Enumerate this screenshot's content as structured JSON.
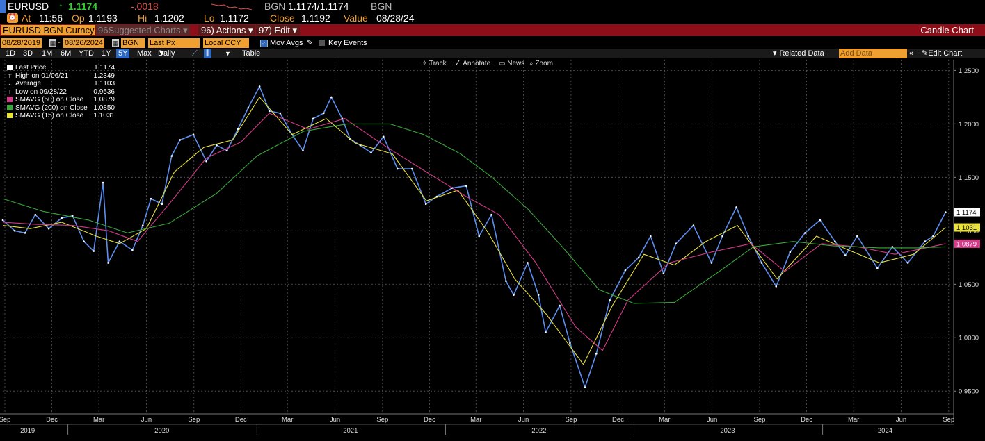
{
  "quote": {
    "symbol": "EURUSD",
    "arrow": "↑",
    "last": "1.1174",
    "change": "-.0018",
    "source_label": "BGN",
    "bid_ask": "1.1174/1.1174",
    "source_label2": "BGN",
    "at_label": "At",
    "time": "11:56",
    "op_label": "Op",
    "open": "1.1193",
    "hi_label": "Hi",
    "high": "1.1202",
    "lo_label": "Lo",
    "low": "1.1172",
    "close_label": "Close",
    "close": "1.1192",
    "value_label": "Value",
    "value_date": "08/28/24"
  },
  "titlebar": {
    "security": "EURUSD BGN Curncy",
    "suggested": "Suggested Charts",
    "suggested_num": "96",
    "actions_num": "96)",
    "actions": "Actions",
    "edit_num": "97)",
    "edit": "Edit",
    "chart_type": "Candle Chart"
  },
  "inputs": {
    "start_date": "08/28/2019",
    "end_date": "08/26/2024",
    "source": "BGN",
    "field": "Last Px",
    "currency": "Local CCY",
    "mov_avgs": "Mov Avgs",
    "key_events": "Key Events"
  },
  "rangebar": {
    "ranges": [
      "1D",
      "3D",
      "1M",
      "6M",
      "YTD",
      "1Y",
      "5Y",
      "Max"
    ],
    "selected": "5Y",
    "frequency": "Daily",
    "table": "Table",
    "related": "+ Related Data",
    "add_data_placeholder": "Add Data",
    "edit_chart": "Edit Chart"
  },
  "toolbar": {
    "track": "Track",
    "annotate": "Annotate",
    "news": "News",
    "zoom": "Zoom"
  },
  "legend": [
    {
      "label": "Last Price",
      "value": "1.1174",
      "color": "#ffffff"
    },
    {
      "label": "High on 01/06/21",
      "value": "1.2349",
      "color": ""
    },
    {
      "label": "Average",
      "value": "1.1103",
      "color": ""
    },
    {
      "label": "Low on 09/28/22",
      "value": "0.9536",
      "color": ""
    },
    {
      "label": "SMAVG (50)  on Close",
      "value": "1.0879",
      "color": "#d63a8a"
    },
    {
      "label": "SMAVG (200)  on Close",
      "value": "1.0850",
      "color": "#3aa83a"
    },
    {
      "label": "SMAVG (15)  on Close",
      "value": "1.1031",
      "color": "#e8e23a"
    }
  ],
  "chart_data": {
    "type": "line",
    "ylim": [
      0.93,
      1.26
    ],
    "yticks": [
      0.95,
      1.0,
      1.05,
      1.1,
      1.15,
      1.2,
      1.25
    ],
    "ytick_labels": [
      "0.9500",
      "1.0000",
      "1.0500",
      "1.1000",
      "1.1500",
      "1.2000",
      "1.2500"
    ],
    "xlim": [
      "2019-08-28",
      "2024-09-08"
    ],
    "month_ticks": [
      {
        "date": "2019-09-01",
        "label": "Sep"
      },
      {
        "date": "2019-12-01",
        "label": "Dec"
      },
      {
        "date": "2020-03-01",
        "label": "Mar"
      },
      {
        "date": "2020-06-01",
        "label": "Jun"
      },
      {
        "date": "2020-09-01",
        "label": "Sep"
      },
      {
        "date": "2020-12-01",
        "label": "Dec"
      },
      {
        "date": "2021-03-01",
        "label": "Mar"
      },
      {
        "date": "2021-06-01",
        "label": "Jun"
      },
      {
        "date": "2021-09-01",
        "label": "Sep"
      },
      {
        "date": "2021-12-01",
        "label": "Dec"
      },
      {
        "date": "2022-03-01",
        "label": "Mar"
      },
      {
        "date": "2022-06-01",
        "label": "Jun"
      },
      {
        "date": "2022-09-01",
        "label": "Sep"
      },
      {
        "date": "2022-12-01",
        "label": "Dec"
      },
      {
        "date": "2023-03-01",
        "label": "Mar"
      },
      {
        "date": "2023-06-01",
        "label": "Jun"
      },
      {
        "date": "2023-09-01",
        "label": "Sep"
      },
      {
        "date": "2023-12-01",
        "label": "Dec"
      },
      {
        "date": "2024-03-01",
        "label": "Mar"
      },
      {
        "date": "2024-06-01",
        "label": "Jun"
      },
      {
        "date": "2024-09-01",
        "label": "Sep"
      }
    ],
    "year_ticks": [
      {
        "date": "2019-10-15",
        "label": "2019"
      },
      {
        "date": "2020-07-01",
        "label": "2020"
      },
      {
        "date": "2021-07-01",
        "label": "2021"
      },
      {
        "date": "2022-07-01",
        "label": "2022"
      },
      {
        "date": "2023-07-01",
        "label": "2023"
      },
      {
        "date": "2024-05-01",
        "label": "2024"
      }
    ],
    "year_dividers": [
      "2020-01-01",
      "2021-01-01",
      "2022-01-01",
      "2023-01-01",
      "2024-01-01"
    ],
    "series": [
      {
        "name": "Last Price",
        "color": "#5b8ff0",
        "x": [
          "2019-08-28",
          "2019-09-20",
          "2019-10-10",
          "2019-10-30",
          "2019-11-25",
          "2019-12-20",
          "2020-01-10",
          "2020-02-01",
          "2020-02-20",
          "2020-03-09",
          "2020-03-19",
          "2020-04-10",
          "2020-05-05",
          "2020-05-25",
          "2020-06-10",
          "2020-07-01",
          "2020-07-20",
          "2020-08-05",
          "2020-08-31",
          "2020-09-25",
          "2020-10-15",
          "2020-11-04",
          "2020-11-25",
          "2020-12-15",
          "2021-01-06",
          "2021-01-25",
          "2021-02-15",
          "2021-03-10",
          "2021-03-31",
          "2021-04-20",
          "2021-05-10",
          "2021-05-25",
          "2021-06-15",
          "2021-06-30",
          "2021-07-20",
          "2021-08-10",
          "2021-09-03",
          "2021-09-30",
          "2021-10-28",
          "2021-11-24",
          "2021-12-15",
          "2022-01-14",
          "2022-02-10",
          "2022-03-07",
          "2022-03-31",
          "2022-04-28",
          "2022-05-13",
          "2022-06-09",
          "2022-06-30",
          "2022-07-14",
          "2022-08-10",
          "2022-08-30",
          "2022-09-28",
          "2022-10-20",
          "2022-11-15",
          "2022-12-15",
          "2023-01-10",
          "2023-02-02",
          "2023-02-27",
          "2023-03-23",
          "2023-04-26",
          "2023-05-31",
          "2023-06-21",
          "2023-07-18",
          "2023-08-10",
          "2023-09-05",
          "2023-10-03",
          "2023-10-30",
          "2023-11-28",
          "2023-12-27",
          "2024-01-25",
          "2024-02-14",
          "2024-03-08",
          "2024-04-16",
          "2024-05-15",
          "2024-06-14",
          "2024-07-17",
          "2024-08-02",
          "2024-08-26"
        ],
        "y": [
          1.11,
          1.1,
          1.098,
          1.115,
          1.102,
          1.112,
          1.114,
          1.09,
          1.081,
          1.145,
          1.07,
          1.09,
          1.082,
          1.105,
          1.13,
          1.125,
          1.17,
          1.185,
          1.19,
          1.165,
          1.18,
          1.175,
          1.195,
          1.215,
          1.235,
          1.212,
          1.21,
          1.19,
          1.175,
          1.205,
          1.21,
          1.225,
          1.205,
          1.186,
          1.18,
          1.173,
          1.188,
          1.158,
          1.158,
          1.125,
          1.132,
          1.14,
          1.142,
          1.095,
          1.115,
          1.053,
          1.04,
          1.07,
          1.04,
          1.005,
          1.03,
          0.995,
          0.9536,
          0.985,
          1.035,
          1.063,
          1.075,
          1.095,
          1.06,
          1.088,
          1.105,
          1.07,
          1.095,
          1.122,
          1.095,
          1.07,
          1.048,
          1.08,
          1.098,
          1.11,
          1.09,
          1.077,
          1.095,
          1.065,
          1.085,
          1.07,
          1.09,
          1.095,
          1.1174
        ]
      },
      {
        "name": "SMAVG (15)  on Close",
        "color": "#e8e23a",
        "x": [
          "2019-08-28",
          "2019-10-20",
          "2019-12-20",
          "2020-02-25",
          "2020-04-10",
          "2020-06-01",
          "2020-07-25",
          "2020-09-20",
          "2020-11-15",
          "2021-01-06",
          "2021-03-10",
          "2021-05-15",
          "2021-07-10",
          "2021-09-20",
          "2021-11-25",
          "2022-01-25",
          "2022-03-25",
          "2022-05-15",
          "2022-07-15",
          "2022-09-25",
          "2022-11-20",
          "2023-01-20",
          "2023-03-20",
          "2023-05-20",
          "2023-07-20",
          "2023-10-05",
          "2023-12-20",
          "2024-02-20",
          "2024-04-20",
          "2024-06-25",
          "2024-08-26"
        ],
        "y": [
          1.105,
          1.102,
          1.108,
          1.095,
          1.088,
          1.102,
          1.155,
          1.178,
          1.185,
          1.225,
          1.19,
          1.205,
          1.182,
          1.172,
          1.128,
          1.138,
          1.098,
          1.055,
          1.022,
          0.975,
          1.03,
          1.078,
          1.068,
          1.09,
          1.105,
          1.055,
          1.095,
          1.082,
          1.07,
          1.078,
          1.1031
        ]
      },
      {
        "name": "SMAVG (50)  on Close",
        "color": "#d63a8a",
        "x": [
          "2019-08-28",
          "2019-11-01",
          "2020-01-10",
          "2020-03-20",
          "2020-05-15",
          "2020-07-15",
          "2020-09-25",
          "2020-12-01",
          "2021-01-25",
          "2021-04-10",
          "2021-06-20",
          "2021-09-10",
          "2021-11-25",
          "2022-02-10",
          "2022-04-15",
          "2022-06-25",
          "2022-09-10",
          "2022-11-01",
          "2022-12-20",
          "2023-03-10",
          "2023-05-30",
          "2023-08-15",
          "2023-10-20",
          "2023-12-30",
          "2024-03-10",
          "2024-05-20",
          "2024-08-26"
        ],
        "y": [
          1.108,
          1.106,
          1.105,
          1.1,
          1.09,
          1.125,
          1.168,
          1.183,
          1.21,
          1.195,
          1.205,
          1.178,
          1.155,
          1.132,
          1.115,
          1.07,
          1.01,
          0.988,
          1.035,
          1.07,
          1.08,
          1.088,
          1.062,
          1.088,
          1.085,
          1.078,
          1.0879
        ]
      },
      {
        "name": "SMAVG (200)  on Close",
        "color": "#3aa83a",
        "x": [
          "2019-08-28",
          "2019-11-15",
          "2020-02-10",
          "2020-04-25",
          "2020-07-15",
          "2020-10-15",
          "2021-01-01",
          "2021-04-01",
          "2021-06-25",
          "2021-09-15",
          "2021-11-20",
          "2022-01-30",
          "2022-04-01",
          "2022-06-10",
          "2022-08-15",
          "2022-10-25",
          "2023-01-01",
          "2023-03-20",
          "2023-06-15",
          "2023-08-20",
          "2023-11-05",
          "2024-01-20",
          "2024-04-20",
          "2024-07-01",
          "2024-08-26"
        ],
        "y": [
          1.13,
          1.118,
          1.11,
          1.098,
          1.107,
          1.135,
          1.17,
          1.193,
          1.2,
          1.2,
          1.19,
          1.172,
          1.15,
          1.12,
          1.085,
          1.045,
          1.032,
          1.033,
          1.062,
          1.085,
          1.09,
          1.086,
          1.084,
          1.084,
          1.085
        ]
      }
    ],
    "right_labels": [
      {
        "value": 1.1174,
        "text": "1.1174",
        "bg": "#ffffff",
        "fg": "#000000"
      },
      {
        "value": 1.1031,
        "text": "1.1031",
        "bg": "#e8e23a",
        "fg": "#000000"
      },
      {
        "value": 1.0879,
        "text": "1.0879",
        "bg": "#d63a8a",
        "fg": "#ffffff"
      }
    ],
    "grid": true
  }
}
